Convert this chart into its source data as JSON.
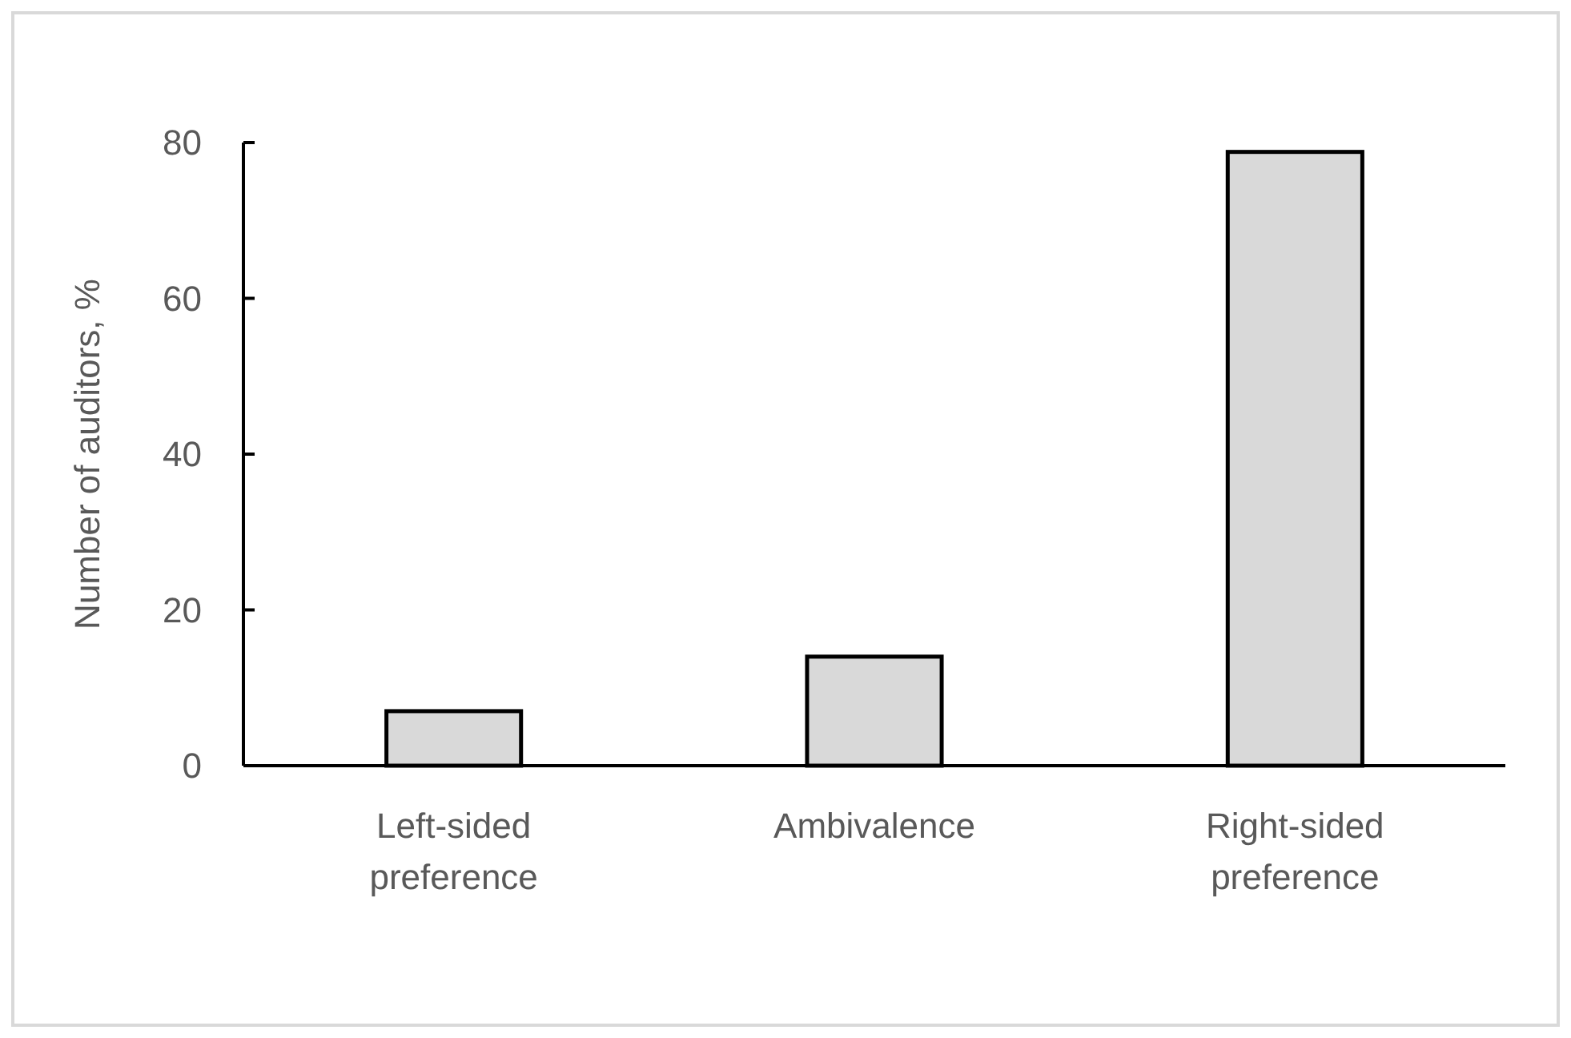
{
  "chart_data": {
    "type": "bar",
    "ylabel": "Number of auditors, %",
    "categories": [
      "Left-sided preference",
      "Ambivalence",
      "Right-sided preference"
    ],
    "values": [
      7,
      14,
      78.8
    ],
    "color": "#d9d9d9",
    "ylim": [
      0,
      80
    ],
    "yticks": [
      0,
      20,
      40,
      60,
      80
    ],
    "grid": false
  }
}
